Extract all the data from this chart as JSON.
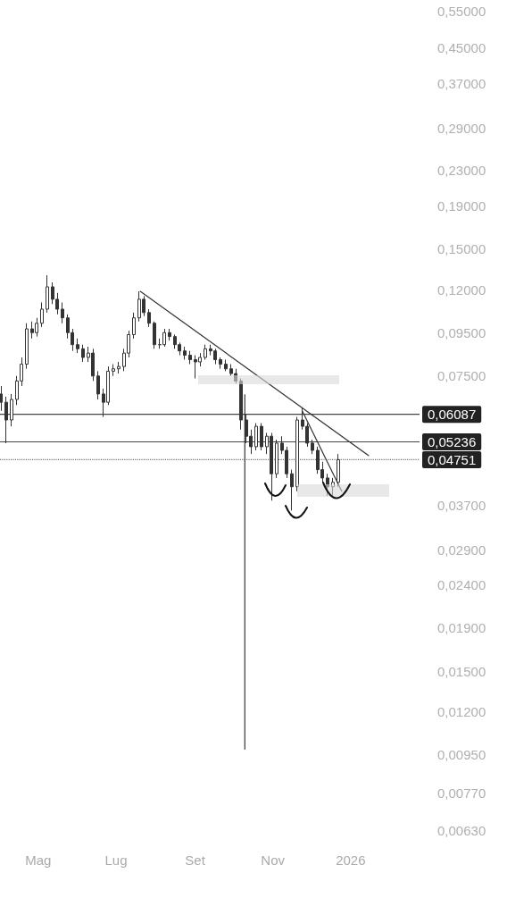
{
  "chart_data": {
    "type": "candlestick",
    "color": "#333333",
    "x": [
      "2025-04-02",
      "2025-04-06",
      "2025-04-10",
      "2025-04-14",
      "2025-04-18",
      "2025-04-22",
      "2025-04-26",
      "2025-04-30",
      "2025-05-04",
      "2025-05-08",
      "2025-05-12",
      "2025-05-16",
      "2025-05-20",
      "2025-05-24",
      "2025-05-28",
      "2025-06-01",
      "2025-06-05",
      "2025-06-09",
      "2025-06-13",
      "2025-06-17",
      "2025-06-21",
      "2025-06-25",
      "2025-06-29",
      "2025-07-03",
      "2025-07-07",
      "2025-07-11",
      "2025-07-15",
      "2025-07-19",
      "2025-07-23",
      "2025-07-27",
      "2025-07-31",
      "2025-08-04",
      "2025-08-08",
      "2025-08-12",
      "2025-08-16",
      "2025-08-20",
      "2025-08-24",
      "2025-08-28",
      "2025-09-01",
      "2025-09-05",
      "2025-09-09",
      "2025-09-13",
      "2025-09-17",
      "2025-09-21",
      "2025-09-25",
      "2025-09-29",
      "2025-10-03",
      "2025-10-07",
      "2025-10-11",
      "2025-10-15",
      "2025-10-19",
      "2025-10-23",
      "2025-10-27",
      "2025-10-31",
      "2025-11-04",
      "2025-11-08",
      "2025-11-12",
      "2025-11-16",
      "2025-11-20",
      "2025-11-24",
      "2025-11-28",
      "2025-12-02",
      "2025-12-06",
      "2025-12-10",
      "2025-12-14",
      "2025-12-18",
      "2025-12-22"
    ],
    "ohlc": [
      [
        0.068,
        0.071,
        0.062,
        0.065
      ],
      [
        0.065,
        0.067,
        0.052,
        0.059
      ],
      [
        0.059,
        0.068,
        0.057,
        0.066
      ],
      [
        0.066,
        0.075,
        0.064,
        0.073
      ],
      [
        0.073,
        0.083,
        0.071,
        0.08
      ],
      [
        0.08,
        0.1,
        0.078,
        0.097
      ],
      [
        0.097,
        0.101,
        0.092,
        0.095
      ],
      [
        0.095,
        0.103,
        0.093,
        0.1
      ],
      [
        0.1,
        0.112,
        0.098,
        0.108
      ],
      [
        0.108,
        0.13,
        0.106,
        0.122
      ],
      [
        0.122,
        0.125,
        0.111,
        0.114
      ],
      [
        0.114,
        0.118,
        0.105,
        0.108
      ],
      [
        0.108,
        0.112,
        0.1,
        0.103
      ],
      [
        0.103,
        0.105,
        0.092,
        0.095
      ],
      [
        0.095,
        0.097,
        0.086,
        0.089
      ],
      [
        0.089,
        0.092,
        0.085,
        0.087
      ],
      [
        0.087,
        0.089,
        0.081,
        0.083
      ],
      [
        0.083,
        0.088,
        0.081,
        0.085
      ],
      [
        0.085,
        0.087,
        0.073,
        0.075
      ],
      [
        0.075,
        0.077,
        0.066,
        0.068
      ],
      [
        0.068,
        0.07,
        0.06,
        0.065
      ],
      [
        0.065,
        0.079,
        0.064,
        0.077
      ],
      [
        0.077,
        0.08,
        0.075,
        0.078
      ],
      [
        0.078,
        0.081,
        0.076,
        0.079
      ],
      [
        0.079,
        0.087,
        0.077,
        0.085
      ],
      [
        0.085,
        0.096,
        0.083,
        0.094
      ],
      [
        0.094,
        0.106,
        0.092,
        0.103
      ],
      [
        0.103,
        0.119,
        0.101,
        0.114
      ],
      [
        0.114,
        0.116,
        0.104,
        0.106
      ],
      [
        0.106,
        0.108,
        0.098,
        0.1
      ],
      [
        0.1,
        0.101,
        0.087,
        0.089
      ],
      [
        0.089,
        0.092,
        0.087,
        0.089
      ],
      [
        0.089,
        0.097,
        0.088,
        0.095
      ],
      [
        0.095,
        0.097,
        0.091,
        0.093
      ],
      [
        0.093,
        0.094,
        0.087,
        0.089
      ],
      [
        0.089,
        0.09,
        0.084,
        0.086
      ],
      [
        0.086,
        0.088,
        0.082,
        0.084
      ],
      [
        0.084,
        0.086,
        0.08,
        0.082
      ],
      [
        0.082,
        0.084,
        0.074,
        0.081
      ],
      [
        0.081,
        0.085,
        0.079,
        0.083
      ],
      [
        0.083,
        0.089,
        0.082,
        0.087
      ],
      [
        0.087,
        0.089,
        0.084,
        0.086
      ],
      [
        0.086,
        0.087,
        0.08,
        0.082
      ],
      [
        0.082,
        0.083,
        0.078,
        0.08
      ],
      [
        0.08,
        0.082,
        0.077,
        0.078
      ],
      [
        0.078,
        0.08,
        0.075,
        0.076
      ],
      [
        0.076,
        0.078,
        0.072,
        0.073
      ],
      [
        0.073,
        0.074,
        0.056,
        0.059
      ],
      [
        0.059,
        0.061,
        0.052,
        0.054
      ],
      [
        0.054,
        0.056,
        0.049,
        0.051
      ],
      [
        0.051,
        0.058,
        0.05,
        0.057
      ],
      [
        0.057,
        0.058,
        0.05,
        0.051
      ],
      [
        0.051,
        0.055,
        0.049,
        0.054
      ],
      [
        0.054,
        0.055,
        0.038,
        0.044
      ],
      [
        0.044,
        0.053,
        0.043,
        0.052
      ],
      [
        0.052,
        0.054,
        0.049,
        0.05
      ],
      [
        0.05,
        0.051,
        0.043,
        0.044
      ],
      [
        0.044,
        0.045,
        0.036,
        0.041
      ],
      [
        0.041,
        0.06,
        0.04,
        0.059
      ],
      [
        0.059,
        0.063,
        0.056,
        0.057
      ],
      [
        0.057,
        0.058,
        0.051,
        0.052
      ],
      [
        0.052,
        0.053,
        0.049,
        0.05
      ],
      [
        0.05,
        0.051,
        0.044,
        0.045
      ],
      [
        0.045,
        0.047,
        0.042,
        0.043
      ],
      [
        0.043,
        0.044,
        0.039,
        0.041
      ],
      [
        0.041,
        0.043,
        0.039,
        0.042
      ],
      [
        0.042,
        0.049,
        0.041,
        0.0475
      ]
    ],
    "series": [
      {
        "type": "line",
        "color": "#333333",
        "x": [
          "2025-07-20",
          "2026-01-15"
        ],
        "values": [
          0.119,
          0.0486
        ]
      },
      {
        "type": "line",
        "color": "#333333",
        "x": [
          "2025-11-24",
          "2025-12-25"
        ],
        "values": [
          0.062,
          0.04
        ]
      },
      {
        "type": "line",
        "color": "#333333",
        "x": [
          "2025-10-10",
          "2025-10-10"
        ],
        "values": [
          0.0677,
          0.0098
        ]
      }
    ],
    "ref_lines": [
      {
        "axis": "y",
        "value": 0.06087,
        "label": "0,06087",
        "color": "#444444",
        "line_style": "solid"
      },
      {
        "axis": "y",
        "value": 0.05236,
        "label": "0,05236",
        "color": "#444444",
        "line_style": "solid"
      },
      {
        "axis": "y",
        "value": 0.04751,
        "label": "0,04751",
        "color": "#777777",
        "line_style": "dotted"
      }
    ],
    "log": "y",
    "xlim": [
      "2025-04-01",
      "2026-02-24"
    ],
    "xticks": [
      {
        "value": "2025-05-01",
        "label": "Mag"
      },
      {
        "value": "2025-07-01",
        "label": "Lug"
      },
      {
        "value": "2025-09-01",
        "label": "Set"
      },
      {
        "value": "2025-11-01",
        "label": "Nov"
      },
      {
        "value": "2026-01-01",
        "label": "2026"
      }
    ],
    "ylim": [
      0.0063,
      0.55
    ],
    "yticks": [
      {
        "value": 0.55,
        "label": "0,55000"
      },
      {
        "value": 0.45,
        "label": "0,45000"
      },
      {
        "value": 0.37,
        "label": "0,37000"
      },
      {
        "value": 0.29,
        "label": "0,29000"
      },
      {
        "value": 0.23,
        "label": "0,23000"
      },
      {
        "value": 0.19,
        "label": "0,19000"
      },
      {
        "value": 0.15,
        "label": "0,15000"
      },
      {
        "value": 0.12,
        "label": "0,12000"
      },
      {
        "value": 0.095,
        "label": "0,09500"
      },
      {
        "value": 0.075,
        "label": "0,07500"
      },
      {
        "value": 0.037,
        "label": "0,03700"
      },
      {
        "value": 0.029,
        "label": "0,02900"
      },
      {
        "value": 0.024,
        "label": "0,02400"
      },
      {
        "value": 0.019,
        "label": "0,01900"
      },
      {
        "value": 0.015,
        "label": "0,01500"
      },
      {
        "value": 0.012,
        "label": "0,01200"
      },
      {
        "value": 0.0095,
        "label": "0,00950"
      },
      {
        "value": 0.0077,
        "label": "0,00770"
      },
      {
        "value": 0.0063,
        "label": "0,00630"
      }
    ]
  }
}
